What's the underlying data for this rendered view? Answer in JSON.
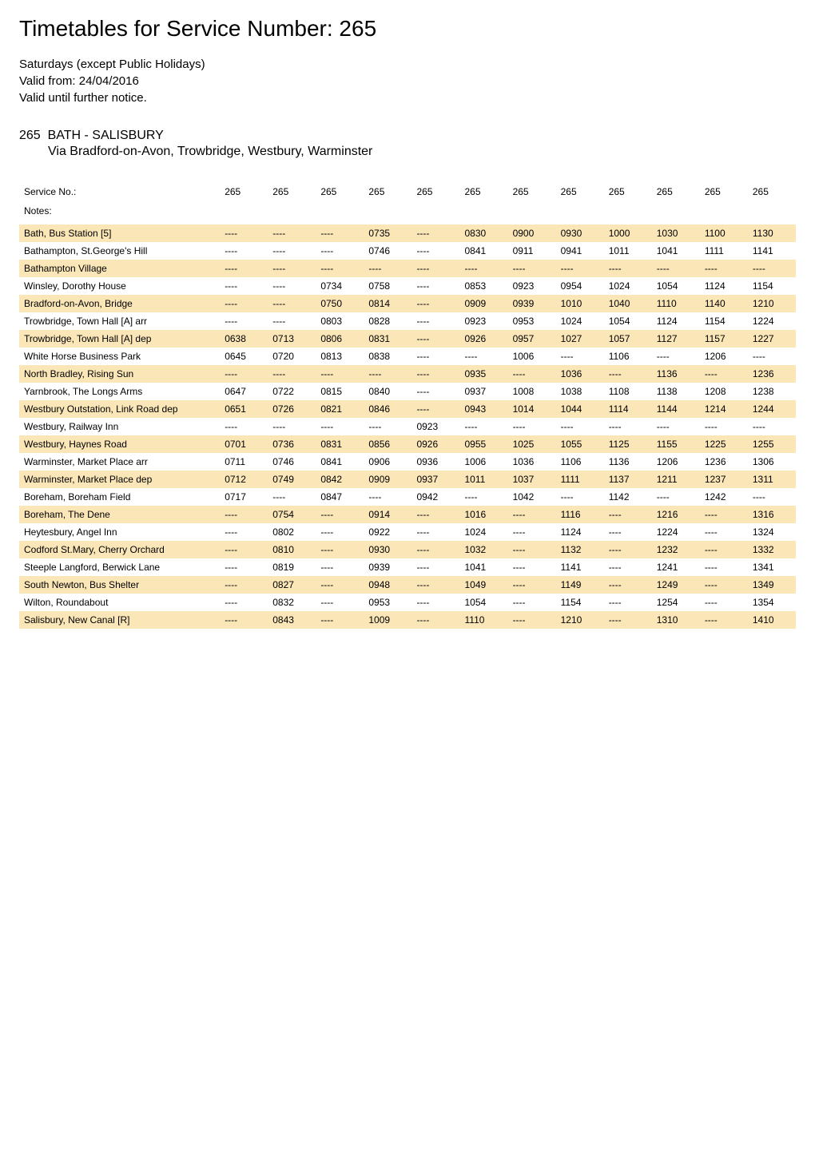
{
  "page_title": "Timetables for Service Number: 265",
  "info_lines": [
    "Saturdays (except Public Holidays)",
    "Valid from: 24/04/2016",
    "Valid until further notice."
  ],
  "route_number": "265",
  "route_name": "BATH - SALISBURY",
  "route_via": "Via Bradford-on-Avon, Trowbridge, Westbury, Warminster",
  "service_label": "Service No.:",
  "notes_label": "Notes:",
  "service_numbers": [
    "265",
    "265",
    "265",
    "265",
    "265",
    "265",
    "265",
    "265",
    "265",
    "265",
    "265",
    "265"
  ],
  "columns_count": 12,
  "stops": [
    {
      "name": "Bath, Bus Station [5]",
      "highlight": true,
      "times": [
        "----",
        "----",
        "----",
        "0735",
        "----",
        "0830",
        "0900",
        "0930",
        "1000",
        "1030",
        "1100",
        "1130"
      ]
    },
    {
      "name": "Bathampton, St.George's Hill",
      "highlight": false,
      "times": [
        "----",
        "----",
        "----",
        "0746",
        "----",
        "0841",
        "0911",
        "0941",
        "1011",
        "1041",
        "1111",
        "1141"
      ]
    },
    {
      "name": "Bathampton Village",
      "highlight": true,
      "times": [
        "----",
        "----",
        "----",
        "----",
        "----",
        "----",
        "----",
        "----",
        "----",
        "----",
        "----",
        "----"
      ]
    },
    {
      "name": "Winsley, Dorothy House",
      "highlight": false,
      "times": [
        "----",
        "----",
        "0734",
        "0758",
        "----",
        "0853",
        "0923",
        "0954",
        "1024",
        "1054",
        "1124",
        "1154"
      ]
    },
    {
      "name": "Bradford-on-Avon, Bridge",
      "highlight": true,
      "times": [
        "----",
        "----",
        "0750",
        "0814",
        "----",
        "0909",
        "0939",
        "1010",
        "1040",
        "1110",
        "1140",
        "1210"
      ]
    },
    {
      "name": "Trowbridge, Town Hall [A] arr",
      "highlight": false,
      "times": [
        "----",
        "----",
        "0803",
        "0828",
        "----",
        "0923",
        "0953",
        "1024",
        "1054",
        "1124",
        "1154",
        "1224"
      ]
    },
    {
      "name": "Trowbridge, Town Hall [A] dep",
      "highlight": true,
      "times": [
        "0638",
        "0713",
        "0806",
        "0831",
        "----",
        "0926",
        "0957",
        "1027",
        "1057",
        "1127",
        "1157",
        "1227"
      ]
    },
    {
      "name": "White Horse Business Park",
      "highlight": false,
      "times": [
        "0645",
        "0720",
        "0813",
        "0838",
        "----",
        "----",
        "1006",
        "----",
        "1106",
        "----",
        "1206",
        "----"
      ]
    },
    {
      "name": "North Bradley, Rising Sun",
      "highlight": true,
      "times": [
        "----",
        "----",
        "----",
        "----",
        "----",
        "0935",
        "----",
        "1036",
        "----",
        "1136",
        "----",
        "1236"
      ]
    },
    {
      "name": "Yarnbrook, The Longs Arms",
      "highlight": false,
      "times": [
        "0647",
        "0722",
        "0815",
        "0840",
        "----",
        "0937",
        "1008",
        "1038",
        "1108",
        "1138",
        "1208",
        "1238"
      ]
    },
    {
      "name": "Westbury Outstation, Link Road dep",
      "highlight": true,
      "times": [
        "0651",
        "0726",
        "0821",
        "0846",
        "----",
        "0943",
        "1014",
        "1044",
        "1114",
        "1144",
        "1214",
        "1244"
      ]
    },
    {
      "name": "Westbury, Railway Inn",
      "highlight": false,
      "times": [
        "----",
        "----",
        "----",
        "----",
        "0923",
        "----",
        "----",
        "----",
        "----",
        "----",
        "----",
        "----"
      ]
    },
    {
      "name": "Westbury, Haynes Road",
      "highlight": true,
      "times": [
        "0701",
        "0736",
        "0831",
        "0856",
        "0926",
        "0955",
        "1025",
        "1055",
        "1125",
        "1155",
        "1225",
        "1255"
      ]
    },
    {
      "name": "Warminster, Market Place arr",
      "highlight": false,
      "times": [
        "0711",
        "0746",
        "0841",
        "0906",
        "0936",
        "1006",
        "1036",
        "1106",
        "1136",
        "1206",
        "1236",
        "1306"
      ]
    },
    {
      "name": "Warminster, Market Place dep",
      "highlight": true,
      "times": [
        "0712",
        "0749",
        "0842",
        "0909",
        "0937",
        "1011",
        "1037",
        "1111",
        "1137",
        "1211",
        "1237",
        "1311"
      ]
    },
    {
      "name": "Boreham, Boreham Field",
      "highlight": false,
      "times": [
        "0717",
        "----",
        "0847",
        "----",
        "0942",
        "----",
        "1042",
        "----",
        "1142",
        "----",
        "1242",
        "----"
      ]
    },
    {
      "name": "Boreham, The Dene",
      "highlight": true,
      "times": [
        "----",
        "0754",
        "----",
        "0914",
        "----",
        "1016",
        "----",
        "1116",
        "----",
        "1216",
        "----",
        "1316"
      ]
    },
    {
      "name": "Heytesbury, Angel Inn",
      "highlight": false,
      "times": [
        "----",
        "0802",
        "----",
        "0922",
        "----",
        "1024",
        "----",
        "1124",
        "----",
        "1224",
        "----",
        "1324"
      ]
    },
    {
      "name": "Codford St.Mary, Cherry Orchard",
      "highlight": true,
      "times": [
        "----",
        "0810",
        "----",
        "0930",
        "----",
        "1032",
        "----",
        "1132",
        "----",
        "1232",
        "----",
        "1332"
      ]
    },
    {
      "name": "Steeple Langford, Berwick Lane",
      "highlight": false,
      "times": [
        "----",
        "0819",
        "----",
        "0939",
        "----",
        "1041",
        "----",
        "1141",
        "----",
        "1241",
        "----",
        "1341"
      ]
    },
    {
      "name": "South Newton, Bus Shelter",
      "highlight": true,
      "times": [
        "----",
        "0827",
        "----",
        "0948",
        "----",
        "1049",
        "----",
        "1149",
        "----",
        "1249",
        "----",
        "1349"
      ]
    },
    {
      "name": "Wilton, Roundabout",
      "highlight": false,
      "times": [
        "----",
        "0832",
        "----",
        "0953",
        "----",
        "1054",
        "----",
        "1154",
        "----",
        "1254",
        "----",
        "1354"
      ]
    },
    {
      "name": "Salisbury, New Canal [R]",
      "highlight": true,
      "times": [
        "----",
        "0843",
        "----",
        "1009",
        "----",
        "1110",
        "----",
        "1210",
        "----",
        "1310",
        "----",
        "1410"
      ]
    }
  ],
  "colors": {
    "highlight_bg": "#fbe6b8",
    "background": "#ffffff",
    "text": "#000000"
  },
  "typography": {
    "title_fontsize": 28,
    "body_fontsize": 15,
    "route_fontsize": 16,
    "table_fontsize": 12,
    "font_family": "Arial"
  }
}
